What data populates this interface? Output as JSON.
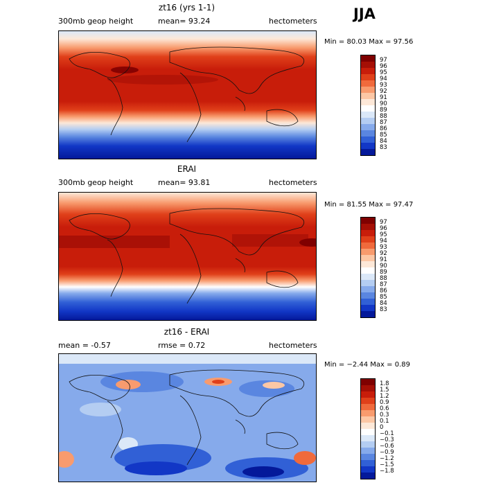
{
  "season": "JJA",
  "panels": [
    {
      "title": "zt16 (yrs 1-1)",
      "left_label": "300mb geop height",
      "mid_label": "mean=  93.24",
      "right_label": "hectometers",
      "minmax": "Min =  80.03 Max =  97.56",
      "colorbar": {
        "labels": [
          "97",
          "96",
          "95",
          "94",
          "93",
          "92",
          "91",
          "90",
          "89",
          "88",
          "87",
          "86",
          "85",
          "84",
          "83"
        ],
        "colors": [
          "#7f0000",
          "#a50f05",
          "#c81d0a",
          "#e0401a",
          "#f06a3c",
          "#f89b6e",
          "#fcc7a5",
          "#fde8d8",
          "#ffffff",
          "#dbe8f8",
          "#b4cdf2",
          "#86aaeb",
          "#5a86e0",
          "#3160d6",
          "#1237c6",
          "#04199a"
        ]
      }
    },
    {
      "title": "ERAI",
      "left_label": "300mb geop height",
      "mid_label": "mean=  93.81",
      "right_label": "hectometers",
      "minmax": "Min =  81.55 Max =  97.47",
      "colorbar": {
        "labels": [
          "97",
          "96",
          "95",
          "94",
          "93",
          "92",
          "91",
          "90",
          "89",
          "88",
          "87",
          "86",
          "85",
          "84",
          "83"
        ],
        "colors": [
          "#7f0000",
          "#a50f05",
          "#c81d0a",
          "#e0401a",
          "#f06a3c",
          "#f89b6e",
          "#fcc7a5",
          "#fde8d8",
          "#ffffff",
          "#dbe8f8",
          "#b4cdf2",
          "#86aaeb",
          "#5a86e0",
          "#3160d6",
          "#1237c6",
          "#04199a"
        ]
      }
    },
    {
      "title": "zt16 - ERAI",
      "left_label": "mean =   -0.57",
      "mid_label": "rmse =    0.72",
      "right_label": "hectometers",
      "minmax": "Min = −2.44 Max =   0.89",
      "colorbar": {
        "labels": [
          "1.8",
          "1.5",
          "1.2",
          "0.9",
          "0.6",
          "0.3",
          "0.1",
          "0",
          "−0.1",
          "−0.3",
          "−0.6",
          "−0.9",
          "−1.2",
          "−1.5",
          "−1.8"
        ],
        "colors": [
          "#7f0000",
          "#a50f05",
          "#c81d0a",
          "#e0401a",
          "#f06a3c",
          "#f89b6e",
          "#fcc7a5",
          "#fde8d8",
          "#ffffff",
          "#dbe8f8",
          "#b4cdf2",
          "#86aaeb",
          "#5a86e0",
          "#3160d6",
          "#1237c6",
          "#04199a"
        ]
      }
    }
  ]
}
